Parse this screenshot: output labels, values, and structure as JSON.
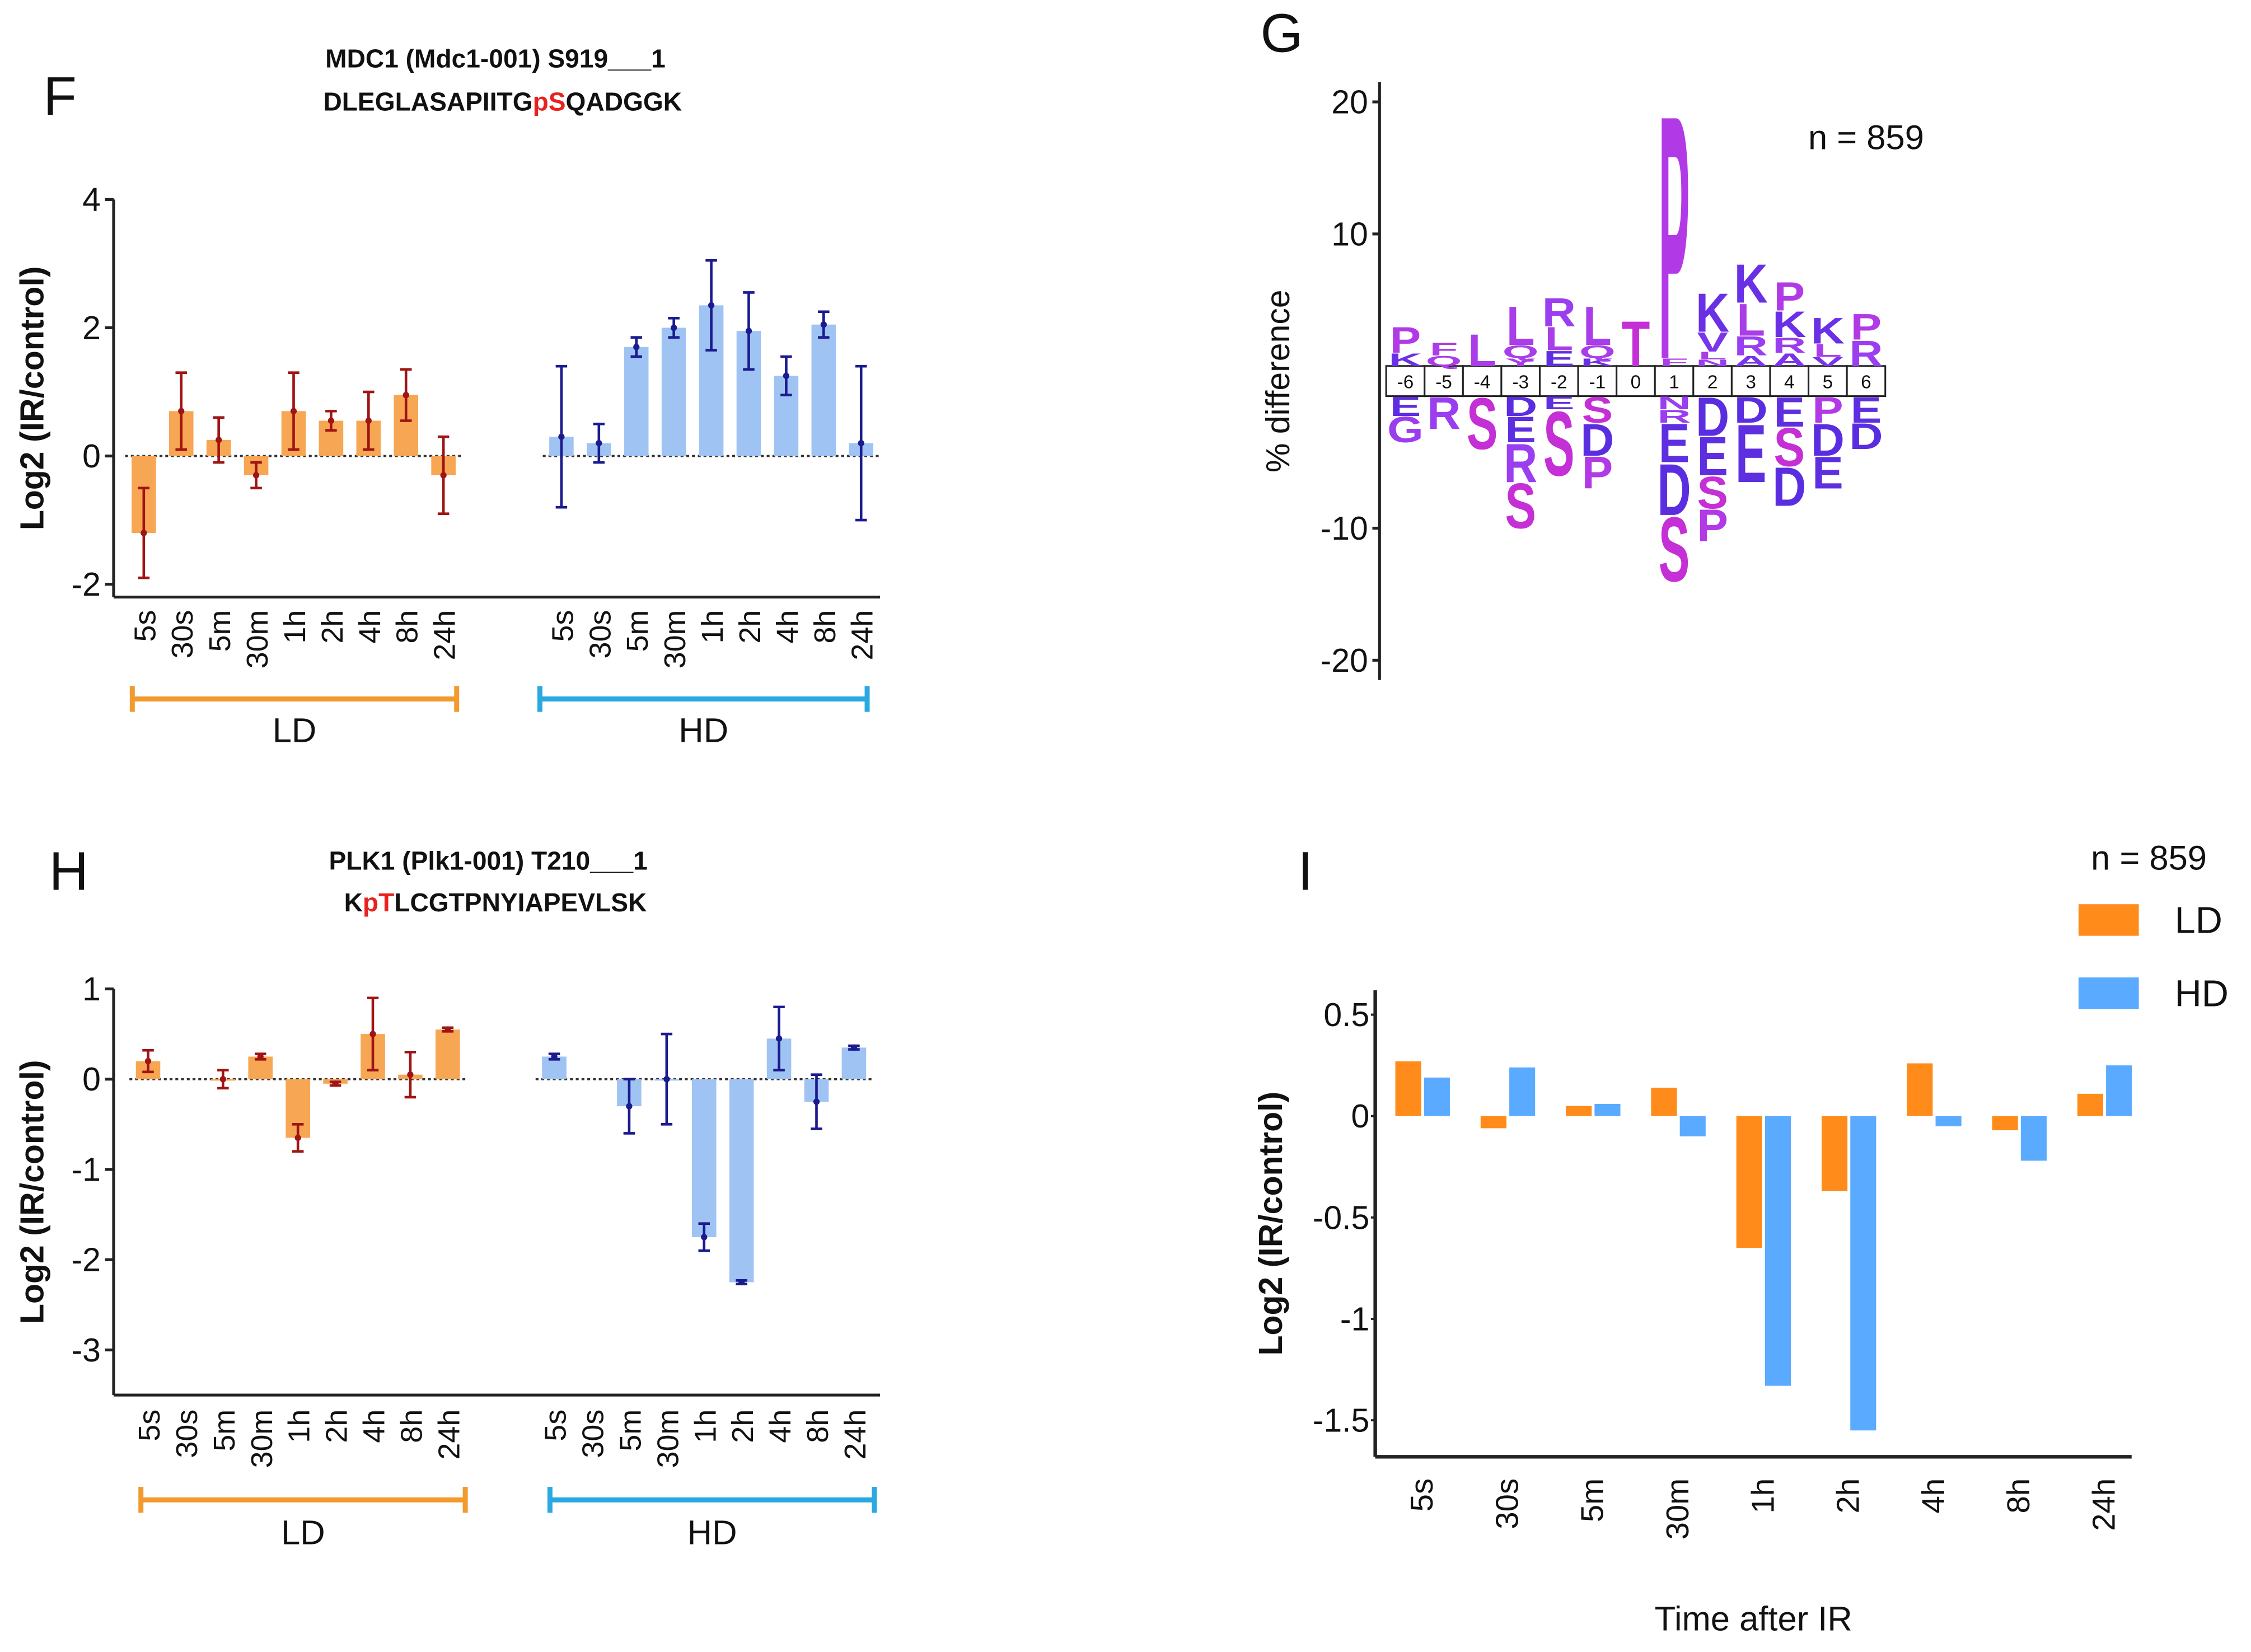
{
  "chart_data": [
    {
      "type": "bar_errorbar",
      "panel": "F",
      "title": "MDC1 (Mdc1-001) S919___1",
      "subtitle_parts": [
        {
          "text": "DLEGLASAPIITG",
          "color": "#111111"
        },
        {
          "text": "pS",
          "color": "#e8231f"
        },
        {
          "text": "QADGGK",
          "color": "#111111"
        }
      ],
      "ylabel": "Log2 (IR/control)",
      "ylim": [
        -2.2,
        4
      ],
      "yticks": [
        -2,
        0,
        2,
        4
      ],
      "categories": [
        "5s",
        "30s",
        "5m",
        "30m",
        "1h",
        "2h",
        "4h",
        "8h",
        "24h"
      ],
      "series": [
        {
          "name": "LD",
          "color": "#f7a653",
          "error_color": "#a01414",
          "bracket_color": "#f29a2e",
          "values": [
            -1.2,
            0.7,
            0.25,
            -0.3,
            0.7,
            0.55,
            0.55,
            0.95,
            -0.3
          ],
          "errors": [
            0.7,
            0.6,
            0.35,
            0.2,
            0.6,
            0.15,
            0.45,
            0.4,
            0.6
          ]
        },
        {
          "name": "HD",
          "color": "#9fc3f3",
          "error_color": "#1b1b8f",
          "bracket_color": "#2aa8e0",
          "values": [
            0.3,
            0.2,
            1.7,
            2.0,
            2.35,
            1.95,
            1.25,
            2.05,
            0.2
          ],
          "errors": [
            1.1,
            0.3,
            0.15,
            0.15,
            0.7,
            0.6,
            0.3,
            0.2,
            1.2
          ]
        }
      ]
    },
    {
      "type": "logo",
      "panel": "G",
      "ylabel": "% difference",
      "annotation": "n = 859",
      "yticks": [
        20,
        10,
        -10,
        -20
      ],
      "letter_colors": {
        "S": "#c52fd6",
        "T": "#c52fd6",
        "P": "#b23ae6",
        "L": "#a93de8",
        "Q": "#a93de8",
        "F": "#a93de8",
        "R": "#9a3ef0",
        "Y": "#a93de8",
        "V": "#7a35ea",
        "G": "#9a3ef0",
        "N": "#9a3ef0",
        "A": "#7a35ea",
        "K": "#6a30e6",
        "D": "#5a2ee0",
        "E": "#5e2fe0"
      },
      "positions": [
        "-6",
        "-5",
        "-4",
        "-3",
        "-2",
        "-1",
        "0",
        "1",
        "2",
        "3",
        "4",
        "5",
        "6"
      ],
      "columns": [
        {
          "above": [
            {
              "letter": "K",
              "value": 1
            },
            {
              "letter": "P",
              "value": 2
            }
          ],
          "below": [
            {
              "letter": "E",
              "value": -1.5
            },
            {
              "letter": "G",
              "value": -2
            }
          ]
        },
        {
          "above": [
            {
              "letter": "Q",
              "value": 0.8
            },
            {
              "letter": "F",
              "value": 1
            }
          ],
          "below": [
            {
              "letter": "R",
              "value": -2.5
            }
          ]
        },
        {
          "above": [
            {
              "letter": "L",
              "value": 2.5
            }
          ],
          "below": [
            {
              "letter": "S",
              "value": -4
            }
          ]
        },
        {
          "above": [
            {
              "letter": "Y",
              "value": 0.6
            },
            {
              "letter": "Q",
              "value": 1
            },
            {
              "letter": "L",
              "value": 3
            }
          ],
          "below": [
            {
              "letter": "D",
              "value": -1.5
            },
            {
              "letter": "E",
              "value": -2
            },
            {
              "letter": "R",
              "value": -3
            },
            {
              "letter": "S",
              "value": -3.5
            }
          ]
        },
        {
          "above": [
            {
              "letter": "E",
              "value": 1.2
            },
            {
              "letter": "L",
              "value": 1.8
            },
            {
              "letter": "R",
              "value": 2.2
            }
          ],
          "below": [
            {
              "letter": "E",
              "value": -1
            },
            {
              "letter": "S",
              "value": -5
            }
          ]
        },
        {
          "above": [
            {
              "letter": "K",
              "value": 0.6
            },
            {
              "letter": "Q",
              "value": 1
            },
            {
              "letter": "L",
              "value": 3
            }
          ],
          "below": [
            {
              "letter": "S",
              "value": -2
            },
            {
              "letter": "D",
              "value": -2.5
            },
            {
              "letter": "P",
              "value": -2.5
            }
          ]
        },
        {
          "above": [
            {
              "letter": "T",
              "value": 3.5
            }
          ],
          "below": []
        },
        {
          "above": [
            {
              "letter": "F",
              "value": 0.6
            },
            {
              "letter": "P",
              "value": 19
            }
          ],
          "below": [
            {
              "letter": "N",
              "value": -1
            },
            {
              "letter": "R",
              "value": -1
            },
            {
              "letter": "E",
              "value": -3
            },
            {
              "letter": "D",
              "value": -4
            },
            {
              "letter": "S",
              "value": -5
            }
          ]
        },
        {
          "above": [
            {
              "letter": "N",
              "value": 0.5
            },
            {
              "letter": "L",
              "value": 0.6
            },
            {
              "letter": "V",
              "value": 1.5
            },
            {
              "letter": "K",
              "value": 3
            }
          ],
          "below": [
            {
              "letter": "D",
              "value": -3
            },
            {
              "letter": "E",
              "value": -3
            },
            {
              "letter": "S",
              "value": -2.5
            },
            {
              "letter": "P",
              "value": -2.5
            }
          ]
        },
        {
          "above": [
            {
              "letter": "A",
              "value": 0.8
            },
            {
              "letter": "R",
              "value": 1.5
            },
            {
              "letter": "L",
              "value": 2.5
            },
            {
              "letter": "K",
              "value": 3
            }
          ],
          "below": [
            {
              "letter": "D",
              "value": -2
            },
            {
              "letter": "E",
              "value": -4.5
            }
          ]
        },
        {
          "above": [
            {
              "letter": "A",
              "value": 1
            },
            {
              "letter": "R",
              "value": 1.2
            },
            {
              "letter": "K",
              "value": 2
            },
            {
              "letter": "P",
              "value": 2.2
            }
          ],
          "below": [
            {
              "letter": "E",
              "value": -2.3
            },
            {
              "letter": "S",
              "value": -3
            },
            {
              "letter": "D",
              "value": -3
            }
          ]
        },
        {
          "above": [
            {
              "letter": "V",
              "value": 0.7
            },
            {
              "letter": "L",
              "value": 1
            },
            {
              "letter": "K",
              "value": 2
            }
          ],
          "below": [
            {
              "letter": "P",
              "value": -2
            },
            {
              "letter": "D",
              "value": -2.5
            },
            {
              "letter": "E",
              "value": -2.5
            }
          ]
        },
        {
          "above": [
            {
              "letter": "R",
              "value": 2
            },
            {
              "letter": "P",
              "value": 2
            }
          ],
          "below": [
            {
              "letter": "E",
              "value": -2
            },
            {
              "letter": "D",
              "value": -2
            }
          ]
        }
      ]
    },
    {
      "type": "bar_errorbar",
      "panel": "H",
      "title": "PLK1 (Plk1-001) T210___1",
      "subtitle_parts": [
        {
          "text": "K",
          "color": "#111111"
        },
        {
          "text": "pT",
          "color": "#e8231f"
        },
        {
          "text": "LCGTPNYIAPEVLSK",
          "color": "#111111"
        }
      ],
      "ylabel": "Log2 (IR/control)",
      "ylim": [
        -3.5,
        1
      ],
      "yticks": [
        -3,
        -2,
        -1,
        0,
        1
      ],
      "categories": [
        "5s",
        "30s",
        "5m",
        "30m",
        "1h",
        "2h",
        "4h",
        "8h",
        "24h"
      ],
      "series": [
        {
          "name": "LD",
          "color": "#f7a653",
          "error_color": "#a01414",
          "bracket_color": "#f29a2e",
          "values": [
            0.2,
            null,
            0.0,
            0.25,
            -0.65,
            -0.05,
            0.5,
            0.05,
            0.55
          ],
          "errors": [
            0.12,
            null,
            0.1,
            0.03,
            0.15,
            0.02,
            0.4,
            0.25,
            0.02
          ]
        },
        {
          "name": "HD",
          "color": "#9fc3f3",
          "error_color": "#1b1b8f",
          "bracket_color": "#2aa8e0",
          "values": [
            0.25,
            null,
            -0.3,
            0.0,
            -1.75,
            -2.25,
            0.45,
            -0.25,
            0.35
          ],
          "errors": [
            0.03,
            null,
            0.3,
            0.5,
            0.15,
            0.02,
            0.35,
            0.3,
            0.02
          ]
        }
      ]
    },
    {
      "type": "grouped_bar",
      "panel": "I",
      "annotation": "n = 859",
      "ylabel": "Log2 (IR/control)",
      "xlabel": "Time after IR",
      "ylim": [
        -1.68,
        0.62
      ],
      "yticks": [
        0.5,
        0,
        -0.5,
        -1,
        -1.5
      ],
      "categories": [
        "5s",
        "30s",
        "5m",
        "30m",
        "1h",
        "2h",
        "4h",
        "8h",
        "24h"
      ],
      "series": [
        {
          "name": "LD",
          "color": "#ff8c1a",
          "values": [
            0.27,
            -0.06,
            0.05,
            0.14,
            -0.65,
            -0.37,
            0.26,
            -0.07,
            0.11
          ]
        },
        {
          "name": "HD",
          "color": "#5aabff",
          "values": [
            0.19,
            0.24,
            0.06,
            -0.1,
            -1.33,
            -1.55,
            -0.05,
            -0.22,
            0.25
          ]
        }
      ]
    }
  ]
}
